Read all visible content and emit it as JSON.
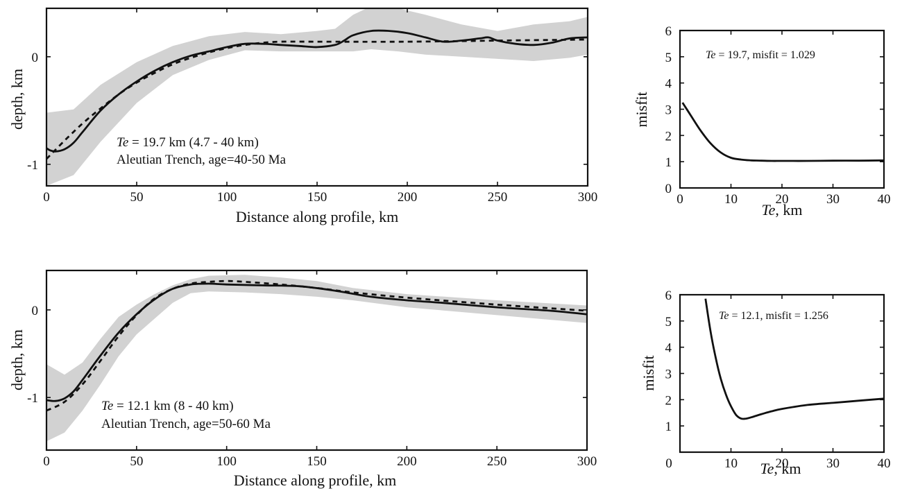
{
  "chart_data": [
    {
      "type": "line",
      "xlabel": "Distance along profile, km",
      "ylabel": "depth, km",
      "xlim": [
        0,
        300
      ],
      "ylim": [
        -1.2,
        0.45
      ],
      "xticks": [
        0,
        50,
        100,
        150,
        200,
        250,
        300
      ],
      "yticks": [
        0,
        -1
      ],
      "annotation": {
        "te_label": "Te",
        "line1": " = 19.7 km (4.7 - 40 km)",
        "line2": "Aleutian Trench, age=40-50 Ma"
      },
      "series": [
        {
          "style": "solid",
          "x": [
            0,
            2,
            5,
            10,
            15,
            20,
            30,
            40,
            50,
            60,
            70,
            80,
            90,
            100,
            110,
            120,
            130,
            140,
            150,
            160,
            165,
            170,
            180,
            190,
            200,
            210,
            220,
            230,
            240,
            245,
            250,
            260,
            270,
            280,
            290,
            300
          ],
          "y": [
            -0.85,
            -0.87,
            -0.88,
            -0.86,
            -0.8,
            -0.7,
            -0.5,
            -0.35,
            -0.23,
            -0.13,
            -0.05,
            0.01,
            0.05,
            0.09,
            0.12,
            0.12,
            0.11,
            0.1,
            0.09,
            0.11,
            0.15,
            0.2,
            0.24,
            0.24,
            0.22,
            0.18,
            0.14,
            0.15,
            0.17,
            0.18,
            0.15,
            0.12,
            0.11,
            0.13,
            0.17,
            0.18
          ]
        },
        {
          "style": "dashed",
          "x": [
            0,
            10,
            20,
            30,
            40,
            50,
            60,
            70,
            80,
            90,
            100,
            110,
            120,
            130,
            150,
            200,
            250,
            300
          ],
          "y": [
            -0.95,
            -0.78,
            -0.62,
            -0.48,
            -0.35,
            -0.24,
            -0.15,
            -0.07,
            -0.01,
            0.04,
            0.08,
            0.11,
            0.13,
            0.14,
            0.14,
            0.14,
            0.15,
            0.16
          ]
        }
      ],
      "band": {
        "x": [
          0,
          15,
          30,
          50,
          70,
          90,
          110,
          130,
          150,
          160,
          170,
          180,
          195,
          210,
          230,
          250,
          270,
          290,
          300
        ],
        "upper": [
          -0.52,
          -0.49,
          -0.26,
          -0.05,
          0.1,
          0.19,
          0.23,
          0.21,
          0.24,
          0.26,
          0.39,
          0.47,
          0.45,
          0.39,
          0.3,
          0.24,
          0.3,
          0.33,
          0.37
        ],
        "lower": [
          -1.2,
          -1.1,
          -0.79,
          -0.43,
          -0.17,
          -0.03,
          0.06,
          0.05,
          0.05,
          0.05,
          0.05,
          0.07,
          0.05,
          0.02,
          0.0,
          -0.02,
          -0.04,
          -0.01,
          0.02
        ]
      }
    },
    {
      "type": "line",
      "xlabel": "Te, km",
      "ylabel": "misfit",
      "xlim": [
        0,
        40
      ],
      "ylim": [
        0,
        6
      ],
      "xticks": [
        0,
        10,
        20,
        30,
        40
      ],
      "yticks": [
        0,
        1,
        2,
        3,
        4,
        5,
        6
      ],
      "annotation": {
        "te_label": "Te",
        "text": " = 19.7, misfit = 1.029"
      },
      "series": [
        {
          "style": "solid",
          "x": [
            0.5,
            2,
            4,
            6,
            8,
            10,
            12,
            14,
            16,
            18,
            20,
            25,
            30,
            35,
            40
          ],
          "y": [
            3.25,
            2.8,
            2.2,
            1.7,
            1.35,
            1.15,
            1.08,
            1.05,
            1.04,
            1.03,
            1.03,
            1.03,
            1.04,
            1.04,
            1.05
          ]
        }
      ]
    },
    {
      "type": "line",
      "xlabel": "Distance along profile, km",
      "ylabel": "depth, km",
      "xlim": [
        0,
        300
      ],
      "ylim": [
        -1.6,
        0.45
      ],
      "xticks": [
        0,
        50,
        100,
        150,
        200,
        250,
        300
      ],
      "yticks": [
        0,
        -1
      ],
      "annotation": {
        "te_label": "Te",
        "line1": " = 12.1 km (8 - 40 km)",
        "line2": "Aleutian Trench, age=50-60 Ma"
      },
      "series": [
        {
          "style": "solid",
          "x": [
            0,
            5,
            10,
            15,
            20,
            30,
            40,
            50,
            60,
            70,
            80,
            90,
            100,
            120,
            140,
            160,
            180,
            200,
            220,
            250,
            280,
            300
          ],
          "y": [
            -1.03,
            -1.04,
            -1.01,
            -0.93,
            -0.8,
            -0.52,
            -0.26,
            -0.05,
            0.12,
            0.24,
            0.29,
            0.3,
            0.29,
            0.28,
            0.27,
            0.22,
            0.15,
            0.11,
            0.08,
            0.03,
            -0.01,
            -0.05
          ]
        },
        {
          "style": "dashed",
          "x": [
            0,
            10,
            20,
            30,
            40,
            50,
            60,
            70,
            80,
            90,
            100,
            110,
            130,
            150,
            170,
            200,
            250,
            300
          ],
          "y": [
            -1.15,
            -1.05,
            -0.85,
            -0.58,
            -0.3,
            -0.06,
            0.13,
            0.24,
            0.3,
            0.32,
            0.33,
            0.32,
            0.29,
            0.25,
            0.2,
            0.14,
            0.06,
            -0.01
          ]
        }
      ],
      "band": {
        "x": [
          0,
          10,
          20,
          30,
          40,
          50,
          60,
          70,
          80,
          90,
          110,
          130,
          150,
          170,
          200,
          250,
          300
        ],
        "upper": [
          -0.62,
          -0.74,
          -0.6,
          -0.33,
          -0.08,
          0.06,
          0.18,
          0.28,
          0.35,
          0.39,
          0.4,
          0.37,
          0.33,
          0.25,
          0.18,
          0.11,
          0.05
        ],
        "lower": [
          -1.5,
          -1.4,
          -1.15,
          -0.85,
          -0.53,
          -0.28,
          -0.1,
          0.08,
          0.19,
          0.21,
          0.2,
          0.18,
          0.15,
          0.11,
          0.03,
          -0.06,
          -0.15
        ]
      }
    },
    {
      "type": "line",
      "xlabel": "Te, km",
      "ylabel": "misfit",
      "xlim": [
        0,
        40
      ],
      "ylim": [
        0,
        6
      ],
      "xticks": [
        0,
        10,
        20,
        30,
        40
      ],
      "yticks": [
        1,
        2,
        3,
        4,
        5,
        6
      ],
      "x_zero_label": "0",
      "annotation": {
        "te_label": "Te",
        "text": " = 12.1, misfit = 1.256"
      },
      "series": [
        {
          "style": "solid",
          "x": [
            5,
            6,
            7,
            8,
            9,
            10,
            11,
            12,
            13,
            14,
            16,
            18,
            20,
            25,
            30,
            35,
            40
          ],
          "y": [
            5.85,
            4.6,
            3.6,
            2.8,
            2.2,
            1.75,
            1.42,
            1.28,
            1.28,
            1.33,
            1.45,
            1.56,
            1.65,
            1.8,
            1.88,
            1.96,
            2.04
          ]
        }
      ]
    }
  ],
  "colors": {
    "band": "#d2d2d2",
    "line": "#111111"
  }
}
